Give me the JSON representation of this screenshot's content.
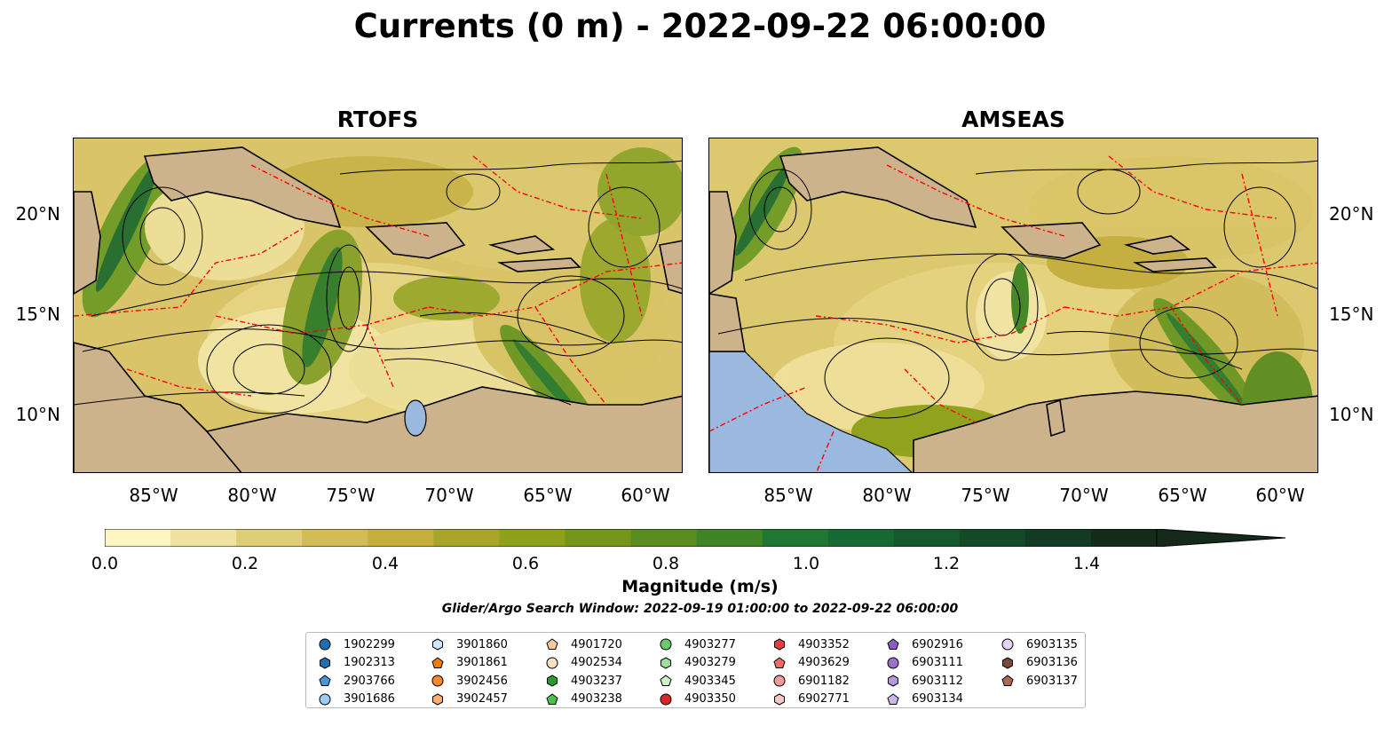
{
  "title": "Currents (0 m) - 2022-09-22 06:00:00",
  "panels": [
    {
      "title": "RTOFS"
    },
    {
      "title": "AMSEAS"
    }
  ],
  "axes": {
    "x_ticks": [
      "85°W",
      "80°W",
      "75°W",
      "70°W",
      "65°W",
      "60°W"
    ],
    "y_ticks": [
      "20°N",
      "15°N",
      "10°N"
    ]
  },
  "colorbar": {
    "label": "Magnitude (m/s)",
    "ticks": [
      "0.0",
      "0.2",
      "0.4",
      "0.6",
      "0.8",
      "1.0",
      "1.2",
      "1.4"
    ],
    "min": 0.0,
    "max": 1.5,
    "extend": "max",
    "colors": [
      "#fef6c2",
      "#f0e3a0",
      "#e0cd78",
      "#d2bc55",
      "#c4ae3e",
      "#a9a52b",
      "#8ea11a",
      "#74961a",
      "#5b8c1f",
      "#3f8526",
      "#1f7733",
      "#176a33",
      "#145a2d",
      "#134a28",
      "#133a22",
      "#142a1b"
    ]
  },
  "search_window": "Glider/Argo Search Window: 2022-09-19 01:00:00 to 2022-09-22 06:00:00",
  "colors": {
    "land": "#cdb38b",
    "water": "#9bb8df",
    "streamlines": "#000000",
    "eez": "#ff0000"
  },
  "legend": [
    {
      "id": "1902299",
      "shape": "circle",
      "color": "#1f6eb4"
    },
    {
      "id": "1902313",
      "shape": "hexagon",
      "color": "#1f6eb4"
    },
    {
      "id": "2903766",
      "shape": "pentagon",
      "color": "#4a97d8"
    },
    {
      "id": "3901686",
      "shape": "circle",
      "color": "#9ecbf0"
    },
    {
      "id": "3901860",
      "shape": "hexagon",
      "color": "#cfe8fb"
    },
    {
      "id": "3901861",
      "shape": "pentagon",
      "color": "#f27c0a"
    },
    {
      "id": "3902456",
      "shape": "circle",
      "color": "#f5882a"
    },
    {
      "id": "3902457",
      "shape": "hexagon",
      "color": "#fbb072"
    },
    {
      "id": "4901720",
      "shape": "pentagon",
      "color": "#fbc99a"
    },
    {
      "id": "4902534",
      "shape": "circle",
      "color": "#fde0c2"
    },
    {
      "id": "4903237",
      "shape": "hexagon",
      "color": "#2a9a2a"
    },
    {
      "id": "4903238",
      "shape": "pentagon",
      "color": "#4dbf4d"
    },
    {
      "id": "4903277",
      "shape": "circle",
      "color": "#6cc86c"
    },
    {
      "id": "4903279",
      "shape": "hexagon",
      "color": "#9be09b"
    },
    {
      "id": "4903345",
      "shape": "pentagon",
      "color": "#c9f5c2"
    },
    {
      "id": "4903350",
      "shape": "circle",
      "color": "#d62728"
    },
    {
      "id": "4903352",
      "shape": "hexagon",
      "color": "#e04040"
    },
    {
      "id": "4903629",
      "shape": "pentagon",
      "color": "#ee6b6b"
    },
    {
      "id": "6901182",
      "shape": "circle",
      "color": "#f29a9a"
    },
    {
      "id": "6902771",
      "shape": "hexagon",
      "color": "#f8c6c6"
    },
    {
      "id": "6902916",
      "shape": "pentagon",
      "color": "#8a5cc2"
    },
    {
      "id": "6903111",
      "shape": "circle",
      "color": "#9a72cc"
    },
    {
      "id": "6903112",
      "shape": "hexagon",
      "color": "#b49ad8"
    },
    {
      "id": "6903134",
      "shape": "pentagon",
      "color": "#cdb8ea"
    },
    {
      "id": "6903135",
      "shape": "circle",
      "color": "#e6d5f5"
    },
    {
      "id": "6903136",
      "shape": "hexagon",
      "color": "#7a4a3a"
    },
    {
      "id": "6903137",
      "shape": "pentagon",
      "color": "#a86b5a"
    }
  ]
}
